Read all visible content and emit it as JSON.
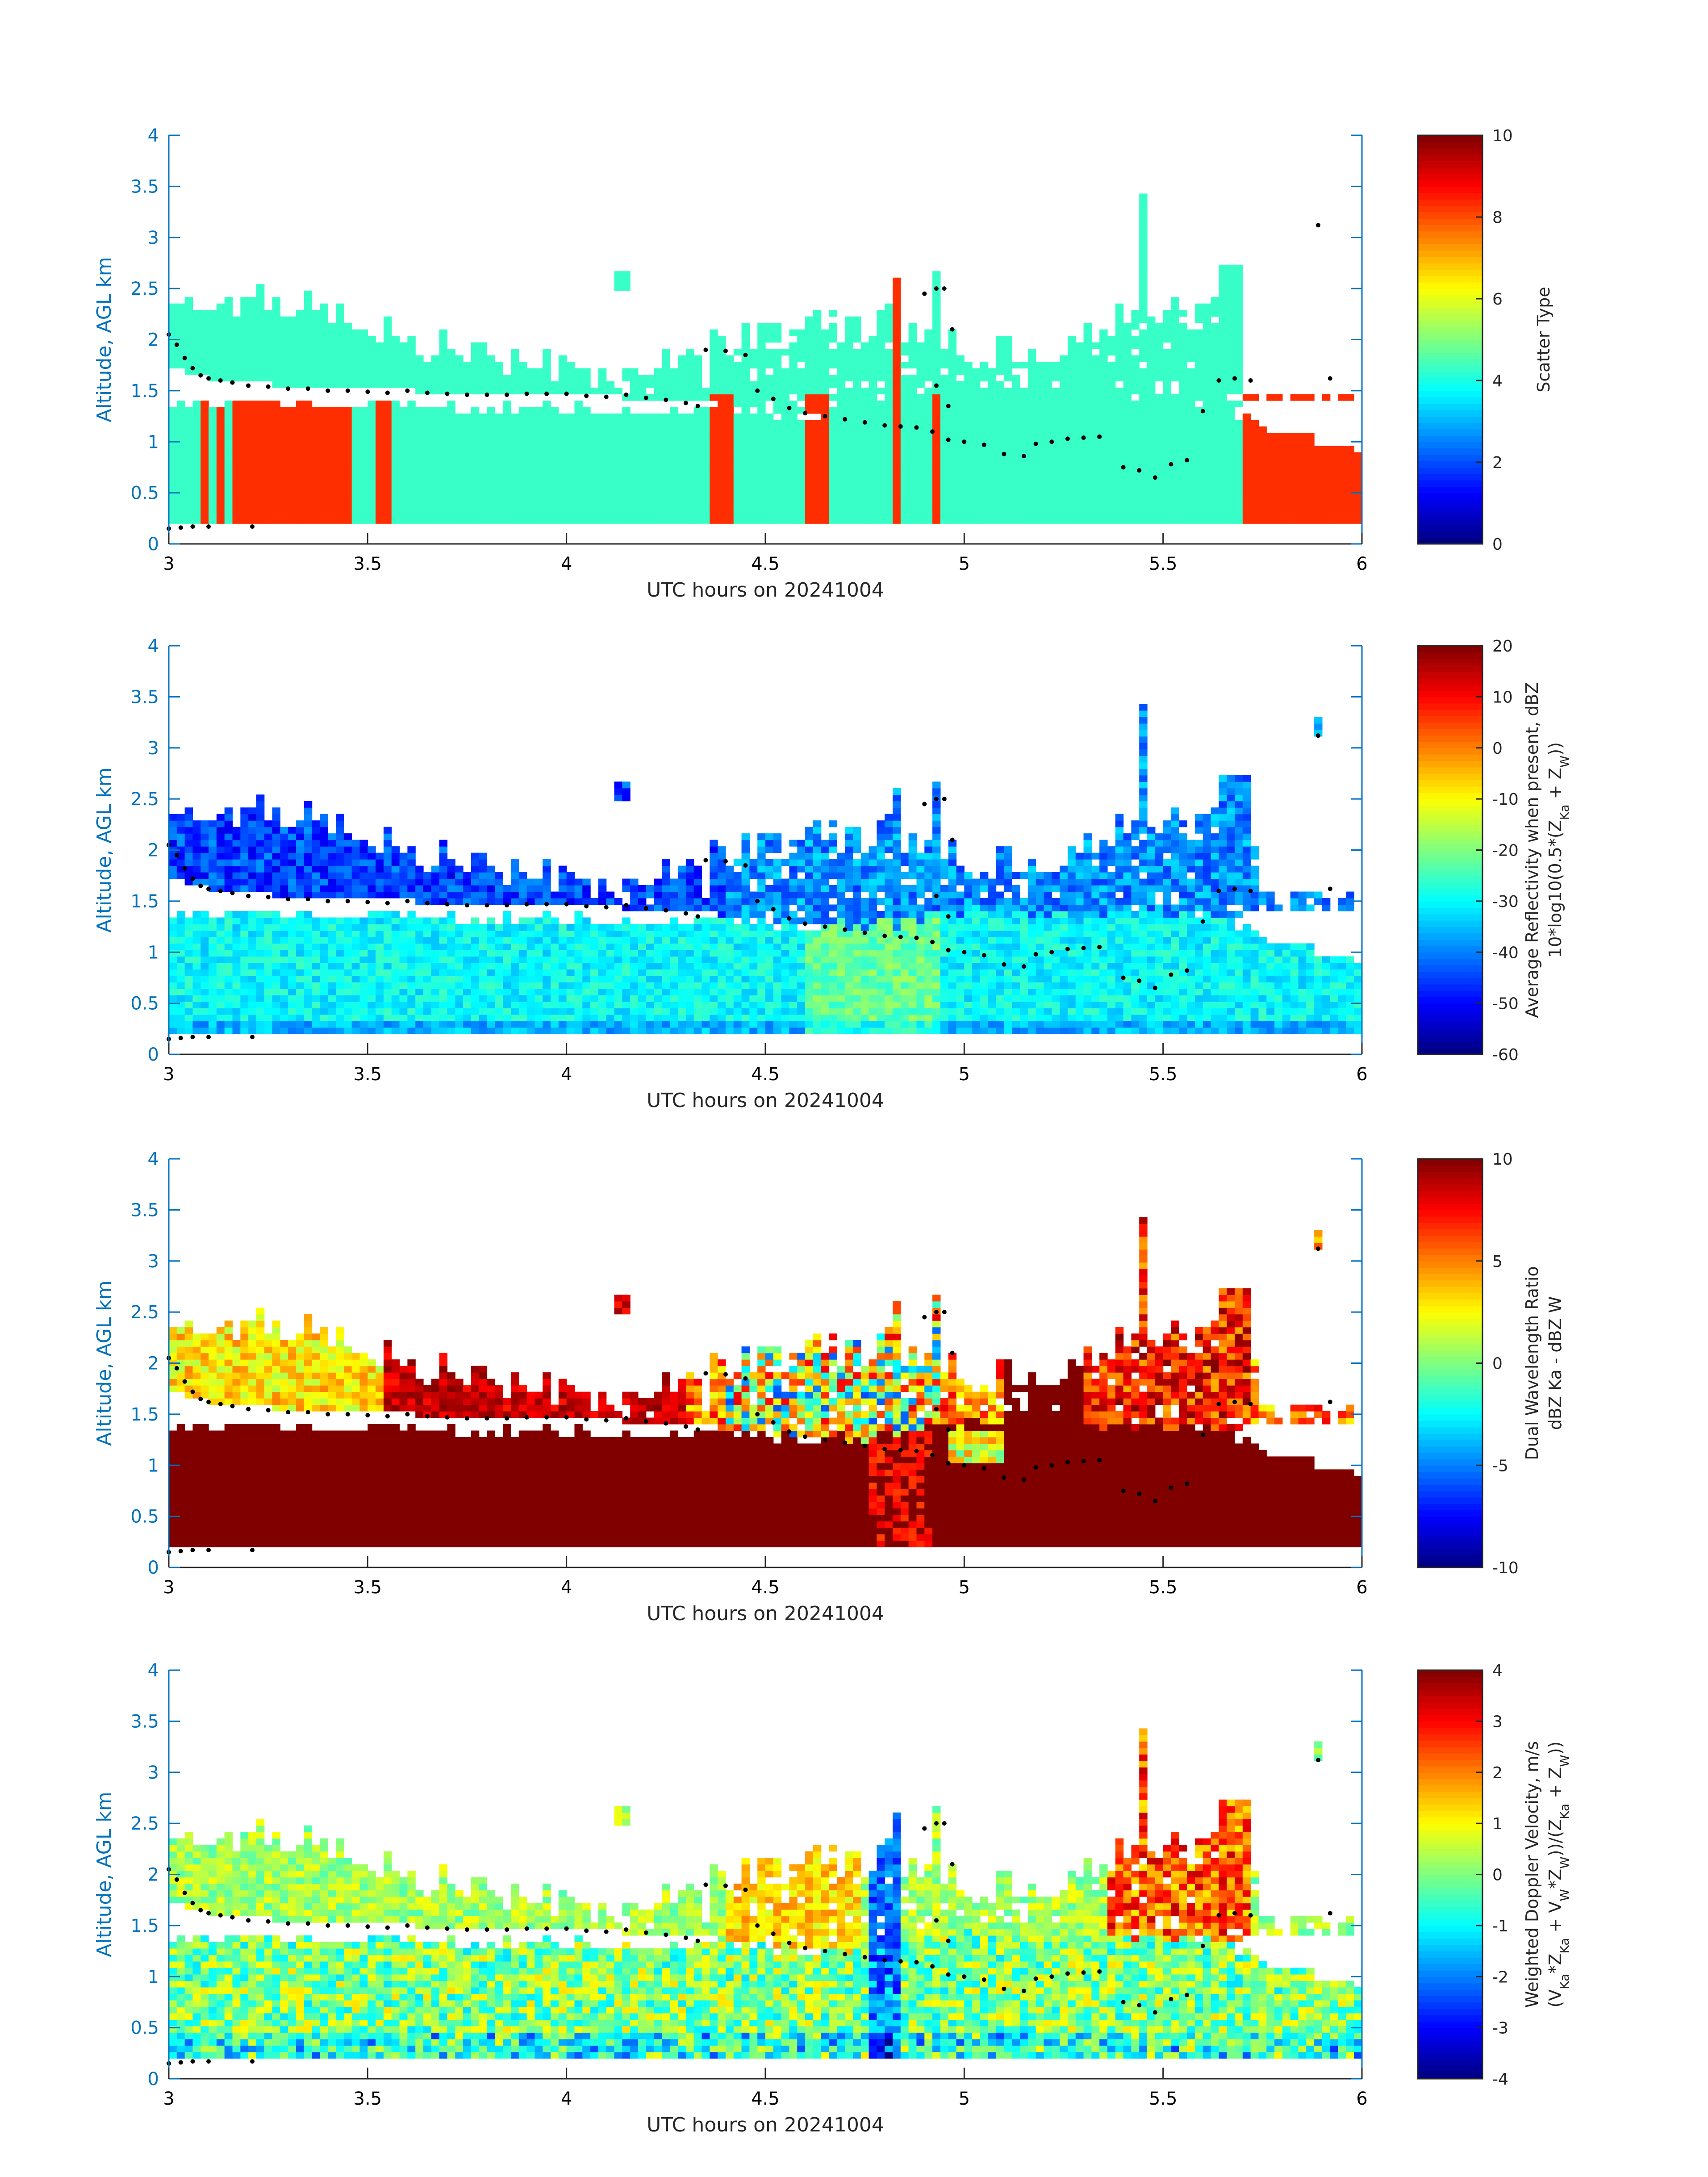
{
  "chart_data": [
    {
      "type": "heatmap",
      "title": "",
      "xlabel": "UTC hours on 20241004",
      "ylabel": "Altitude, AGL km",
      "xlim": [
        3,
        6
      ],
      "ylim": [
        0,
        4
      ],
      "xticks": [
        "3",
        "3.5",
        "4",
        "4.5",
        "5",
        "5.5",
        "6"
      ],
      "yticks": [
        "0",
        "0.5",
        "1",
        "1.5",
        "2",
        "2.5",
        "3",
        "3.5",
        "4"
      ],
      "colorbar": {
        "label_lines": [
          "Scatter Type"
        ],
        "range": [
          0,
          10
        ],
        "ticks": [
          "0",
          "2",
          "4",
          "6",
          "8",
          "10"
        ],
        "colormap": "jet"
      },
      "field": "scatter_type"
    },
    {
      "type": "heatmap",
      "title": "",
      "xlabel": "UTC hours on 20241004",
      "ylabel": "Altitude, AGL km",
      "xlim": [
        3,
        6
      ],
      "ylim": [
        0,
        4
      ],
      "xticks": [
        "3",
        "3.5",
        "4",
        "4.5",
        "5",
        "5.5",
        "6"
      ],
      "yticks": [
        "0",
        "0.5",
        "1",
        "1.5",
        "2",
        "2.5",
        "3",
        "3.5",
        "4"
      ],
      "colorbar": {
        "label_lines": [
          "Average Reflectivity when present, dBZ",
          "10*log10(0.5*(Z_Ka + Z_W))"
        ],
        "range": [
          -60,
          20
        ],
        "ticks": [
          "-60",
          "-50",
          "-40",
          "-30",
          "-20",
          "-10",
          "0",
          "10",
          "20"
        ],
        "colormap": "jet"
      },
      "field": "reflectivity"
    },
    {
      "type": "heatmap",
      "title": "",
      "xlabel": "UTC hours on 20241004",
      "ylabel": "Altitude, AGL km",
      "xlim": [
        3,
        6
      ],
      "ylim": [
        0,
        4
      ],
      "xticks": [
        "3",
        "3.5",
        "4",
        "4.5",
        "5",
        "5.5",
        "6"
      ],
      "yticks": [
        "0",
        "0.5",
        "1",
        "1.5",
        "2",
        "2.5",
        "3",
        "3.5",
        "4"
      ],
      "colorbar": {
        "label_lines": [
          "Dual Wavelength Ratio",
          "dBZ Ka - dBZ W"
        ],
        "range": [
          -10,
          10
        ],
        "ticks": [
          "-10",
          "-5",
          "0",
          "5",
          "10"
        ],
        "colormap": "jet"
      },
      "field": "dwr"
    },
    {
      "type": "heatmap",
      "title": "",
      "xlabel": "UTC hours on 20241004",
      "ylabel": "Altitude, AGL km",
      "xlim": [
        3,
        6
      ],
      "ylim": [
        0,
        4
      ],
      "xticks": [
        "3",
        "3.5",
        "4",
        "4.5",
        "5",
        "5.5",
        "6"
      ],
      "yticks": [
        "0",
        "0.5",
        "1",
        "1.5",
        "2",
        "2.5",
        "3",
        "3.5",
        "4"
      ],
      "colorbar": {
        "label_lines": [
          "Weighted Doppler Velocity, m/s",
          "(V_Ka*Z_Ka + V_W*Z_W))/(Z_Ka + Z_W))"
        ],
        "range": [
          -4,
          4
        ],
        "ticks": [
          "-4",
          "-3",
          "-2",
          "-1",
          "0",
          "1",
          "2",
          "3",
          "4"
        ],
        "colormap": "jet"
      },
      "field": "velocity"
    }
  ],
  "cloud_base_dots": {
    "description_units": "x in UTC hours, y in km AGL",
    "points": [
      [
        3.0,
        2.05
      ],
      [
        3.02,
        1.95
      ],
      [
        3.04,
        1.82
      ],
      [
        3.06,
        1.72
      ],
      [
        3.08,
        1.65
      ],
      [
        3.1,
        1.62
      ],
      [
        3.13,
        1.6
      ],
      [
        3.16,
        1.58
      ],
      [
        3.2,
        1.55
      ],
      [
        3.25,
        1.54
      ],
      [
        3.3,
        1.52
      ],
      [
        3.35,
        1.52
      ],
      [
        3.4,
        1.5
      ],
      [
        3.45,
        1.5
      ],
      [
        3.5,
        1.49
      ],
      [
        3.55,
        1.48
      ],
      [
        3.6,
        1.5
      ],
      [
        3.65,
        1.48
      ],
      [
        3.7,
        1.47
      ],
      [
        3.75,
        1.46
      ],
      [
        3.8,
        1.46
      ],
      [
        3.85,
        1.46
      ],
      [
        3.9,
        1.47
      ],
      [
        3.95,
        1.47
      ],
      [
        4.0,
        1.47
      ],
      [
        4.05,
        1.45
      ],
      [
        4.1,
        1.44
      ],
      [
        4.15,
        1.46
      ],
      [
        4.2,
        1.43
      ],
      [
        4.25,
        1.41
      ],
      [
        4.3,
        1.38
      ],
      [
        4.33,
        1.35
      ],
      [
        4.35,
        1.9
      ],
      [
        4.4,
        1.89
      ],
      [
        4.45,
        1.85
      ],
      [
        4.48,
        1.5
      ],
      [
        4.52,
        1.42
      ],
      [
        4.56,
        1.33
      ],
      [
        4.6,
        1.28
      ],
      [
        4.65,
        1.25
      ],
      [
        4.7,
        1.22
      ],
      [
        4.75,
        1.19
      ],
      [
        4.8,
        1.16
      ],
      [
        4.84,
        1.15
      ],
      [
        4.88,
        1.14
      ],
      [
        4.92,
        1.1
      ],
      [
        4.96,
        1.02
      ],
      [
        5.0,
        1.0
      ],
      [
        5.05,
        0.97
      ],
      [
        5.1,
        0.88
      ],
      [
        5.15,
        0.86
      ],
      [
        5.18,
        0.98
      ],
      [
        5.22,
        1.0
      ],
      [
        5.26,
        1.03
      ],
      [
        5.3,
        1.04
      ],
      [
        5.34,
        1.05
      ],
      [
        5.4,
        0.75
      ],
      [
        5.44,
        0.72
      ],
      [
        5.48,
        0.65
      ],
      [
        5.52,
        0.78
      ],
      [
        5.56,
        0.82
      ],
      [
        5.6,
        1.3
      ],
      [
        5.64,
        1.6
      ],
      [
        5.68,
        1.62
      ],
      [
        5.72,
        1.6
      ],
      [
        3.0,
        0.15
      ],
      [
        3.03,
        0.16
      ],
      [
        3.06,
        0.17
      ],
      [
        3.1,
        0.17
      ],
      [
        3.21,
        0.17
      ],
      [
        4.9,
        2.45
      ],
      [
        4.93,
        2.5
      ],
      [
        4.95,
        2.5
      ],
      [
        4.97,
        2.1
      ],
      [
        4.93,
        1.55
      ],
      [
        4.96,
        1.35
      ],
      [
        5.89,
        3.12
      ],
      [
        5.92,
        1.62
      ]
    ]
  }
}
